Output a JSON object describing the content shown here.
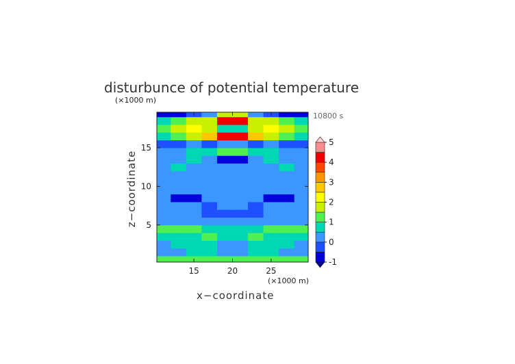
{
  "chart_data": {
    "type": "contour",
    "title": "disturbunce of potential temperature",
    "time_label": "10800 s",
    "x_label": "x−coordinate",
    "y_label": "z−coordinate",
    "x_unit": "(×1000 m)",
    "y_unit": "(×1000 m)",
    "xlim": [
      10.2,
      29.8
    ],
    "ylim": [
      0.2,
      19.6
    ],
    "xticks": [
      15,
      20,
      25
    ],
    "yticks": [
      5,
      10,
      15
    ],
    "x": [
      11,
      13,
      15,
      17,
      19,
      21,
      23,
      25,
      27,
      29
    ],
    "y": [
      0.5,
      1.5,
      2.5,
      3.5,
      4.5,
      5.5,
      6.5,
      7.5,
      8.5,
      9.5,
      10.5,
      11.5,
      12.5,
      13.5,
      14.5,
      15.5,
      16.5,
      17.5,
      18.5,
      19.5
    ],
    "z": [
      [
        1,
        1.1,
        1.2,
        1.1,
        1,
        1,
        1.1,
        1.2,
        1.1,
        1
      ],
      [
        0.4,
        0.3,
        0.5,
        0.6,
        0.3,
        0.3,
        0.6,
        0.5,
        0.3,
        0.4
      ],
      [
        0.4,
        0.5,
        0.6,
        0.7,
        0.4,
        0.4,
        0.7,
        0.6,
        0.5,
        0.4
      ],
      [
        0.6,
        0.8,
        0.8,
        1,
        0.7,
        0.7,
        1,
        0.8,
        0.8,
        0.6
      ],
      [
        1,
        1.3,
        1.3,
        0.8,
        0.6,
        0.6,
        0.8,
        1.3,
        1.3,
        1
      ],
      [
        0.3,
        0.3,
        0.4,
        0.3,
        0.2,
        0.2,
        0.3,
        0.4,
        0.3,
        0.3
      ],
      [
        0.3,
        0.2,
        0,
        -0.3,
        -0.3,
        -0.3,
        -0.3,
        0,
        0.2,
        0.3
      ],
      [
        0.3,
        0.3,
        0.2,
        -0.3,
        0.2,
        0.2,
        -0.3,
        0.2,
        0.3,
        0.3
      ],
      [
        0,
        -0.7,
        -0.7,
        0,
        0.3,
        0.3,
        0,
        -0.7,
        -0.7,
        0
      ],
      [
        0.1,
        0.1,
        0.3,
        0.3,
        0.3,
        0.3,
        0.3,
        0.3,
        0.1,
        0.1
      ],
      [
        0.2,
        0.2,
        0.3,
        0.2,
        0.1,
        0.1,
        0.2,
        0.3,
        0.2,
        0.2
      ],
      [
        0.2,
        0.3,
        0.3,
        0.2,
        0.3,
        0.3,
        0.2,
        0.3,
        0.3,
        0.2
      ],
      [
        0.2,
        0.5,
        0.3,
        0.4,
        0.3,
        0.3,
        0.4,
        0.3,
        0.5,
        0.2
      ],
      [
        0.3,
        0.2,
        0.5,
        0,
        -0.8,
        -0.8,
        0,
        0.5,
        0.2,
        0.3
      ],
      [
        0.2,
        0.3,
        0.5,
        0.6,
        1.2,
        1.2,
        0.6,
        0.5,
        0.3,
        0.2
      ],
      [
        -0.3,
        -0.5,
        0,
        -0.3,
        0.3,
        0.3,
        -0.3,
        0,
        -0.5,
        -0.3
      ],
      [
        0.5,
        1,
        1.5,
        2.5,
        4.2,
        4.2,
        2.5,
        1.5,
        1,
        0.5
      ],
      [
        1,
        1.8,
        2,
        1.5,
        0.5,
        0.5,
        1.5,
        2,
        1.8,
        1
      ],
      [
        0.5,
        1,
        1.5,
        1.8,
        4,
        4,
        1.8,
        1.5,
        1,
        0.5
      ],
      [
        -0.8,
        -0.8,
        -0.5,
        0,
        1.5,
        1.5,
        0,
        -0.5,
        -0.8,
        -0.8
      ]
    ],
    "levels": [
      -1,
      -0.5,
      0,
      0.5,
      1,
      1.5,
      2,
      2.5,
      3,
      3.5,
      4,
      4.5,
      5
    ],
    "colors": [
      "#000090",
      "#0000d8",
      "#1e50ff",
      "#3c96ff",
      "#00d8b4",
      "#50f050",
      "#c8f000",
      "#ffff00",
      "#ffc800",
      "#ff9600",
      "#ff4600",
      "#f00000",
      "#ff8c8c",
      "#ffd0d0"
    ],
    "colorbar_ticks": [
      -1,
      0,
      1,
      2,
      3,
      4,
      5
    ]
  }
}
